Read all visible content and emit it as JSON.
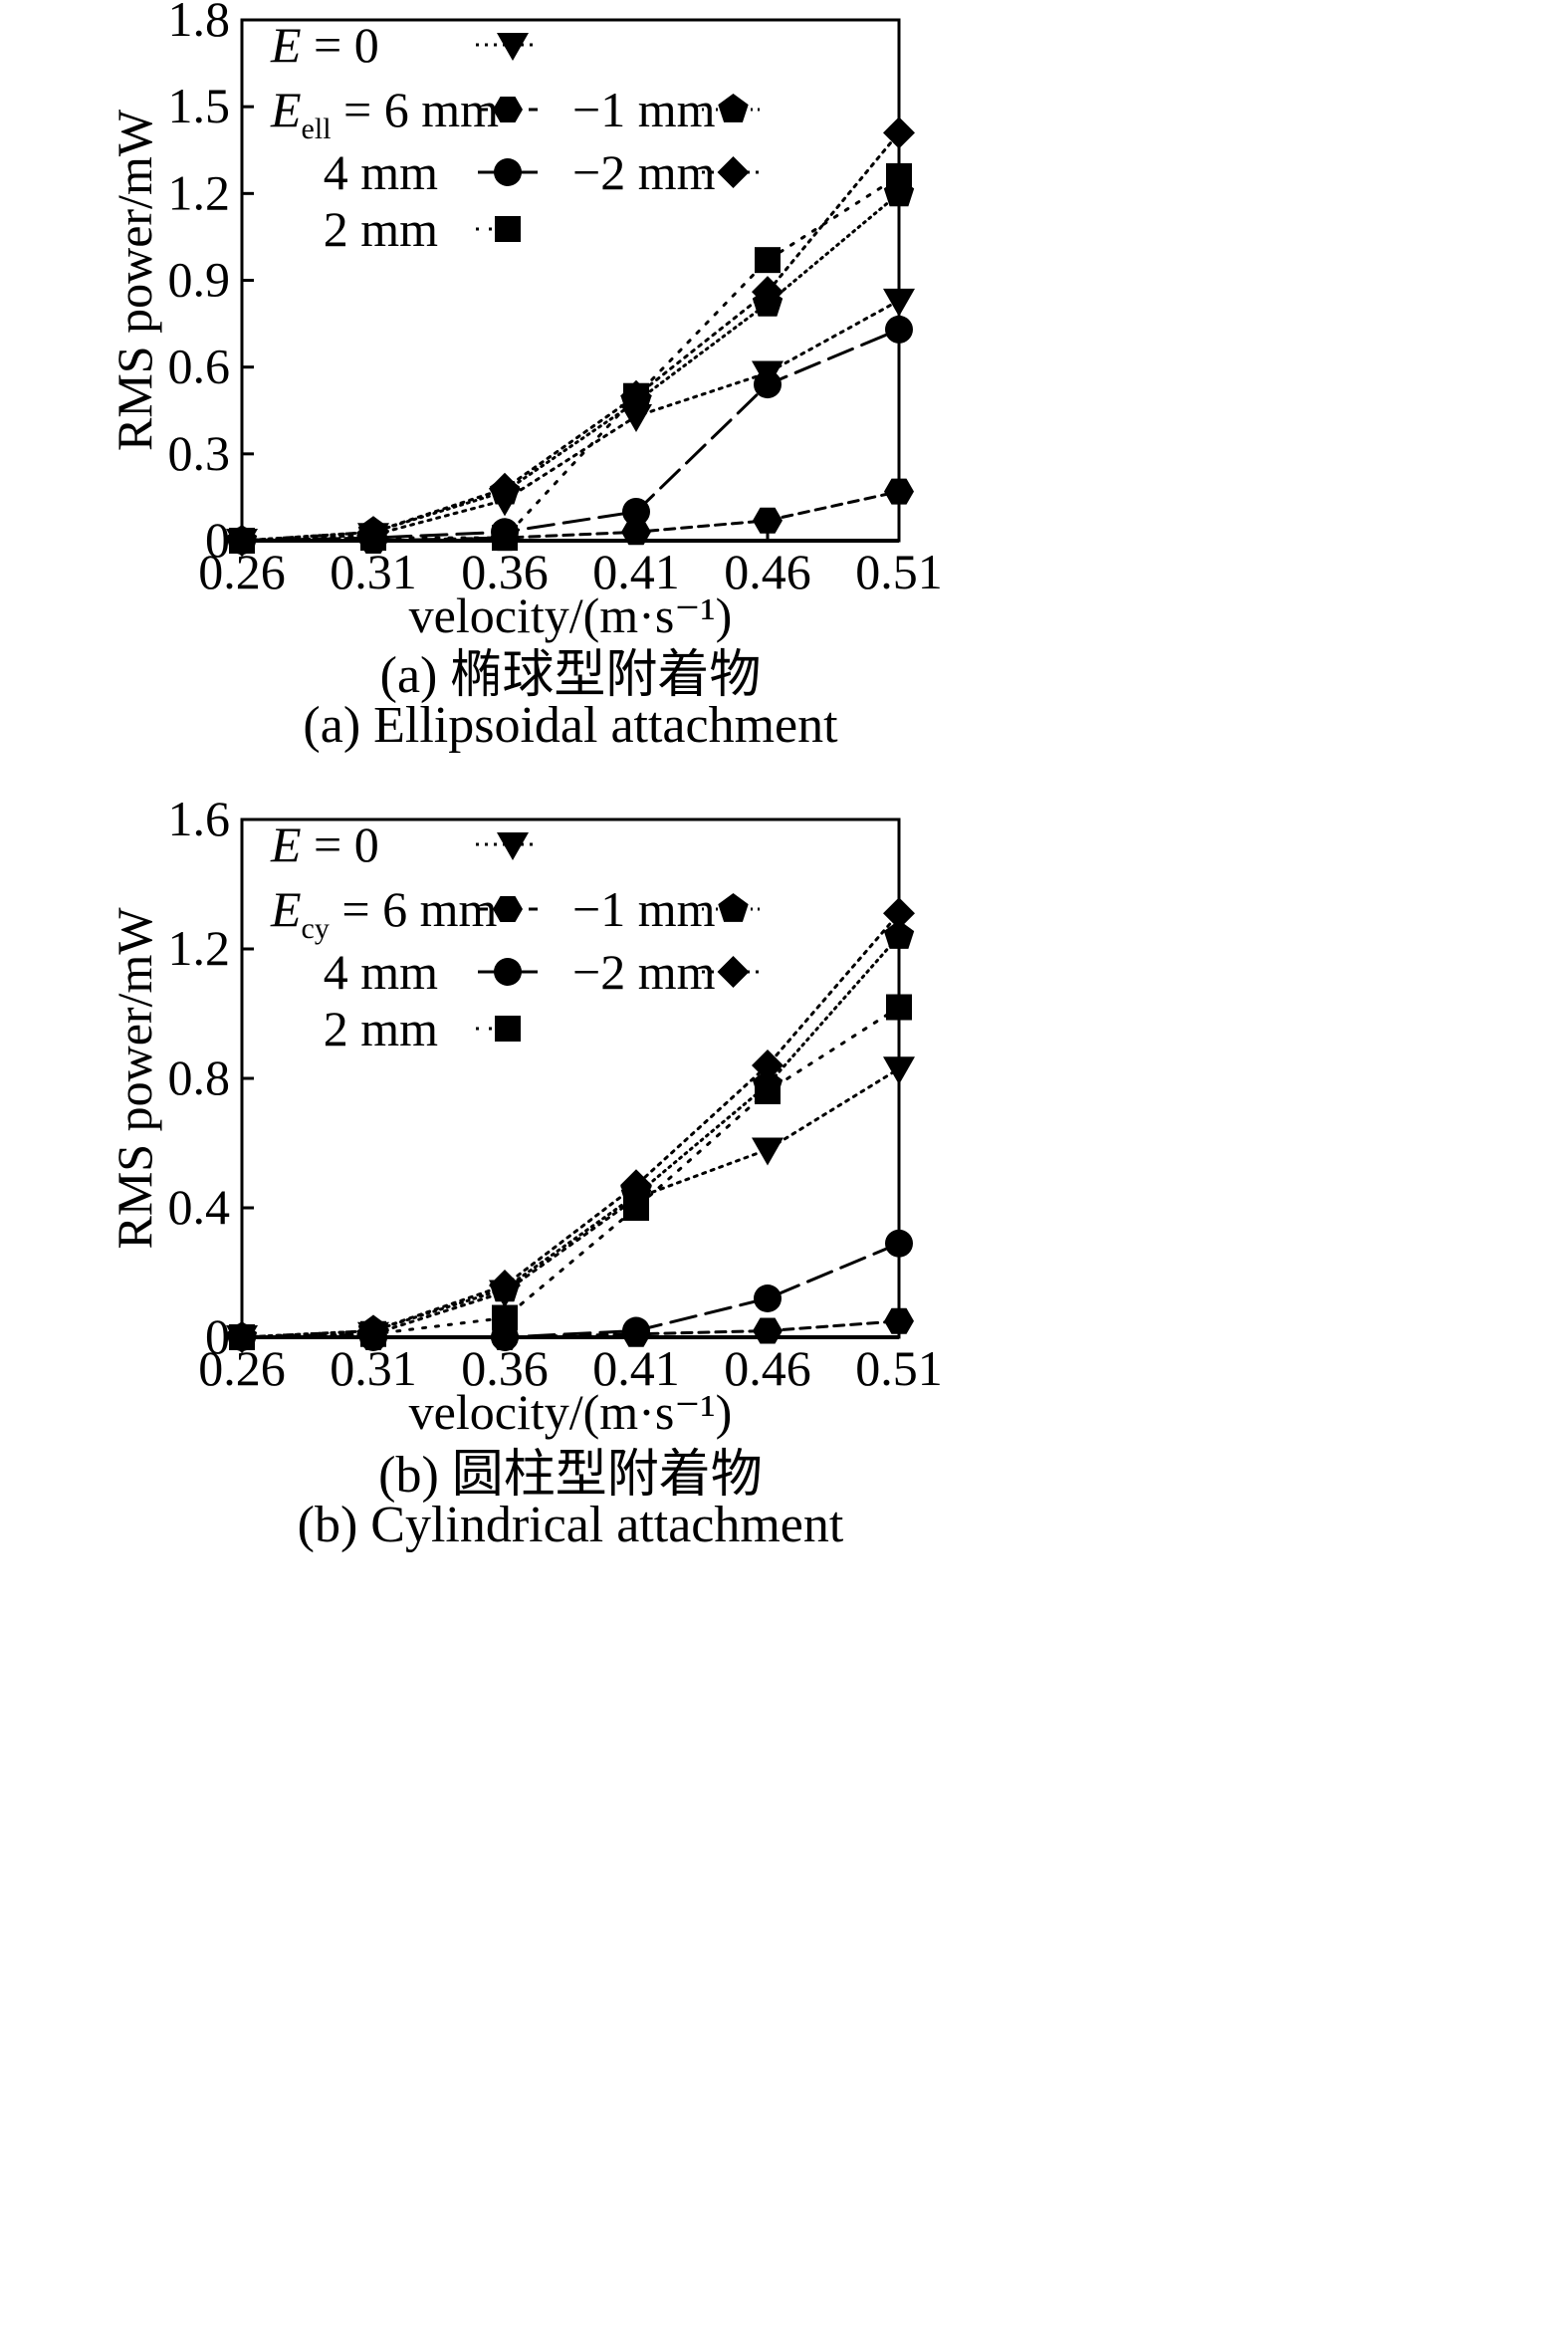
{
  "chart_data": [
    {
      "type": "line",
      "caption_zh": "(a) 椭球型附着物",
      "caption_en": "(a) Ellipsoidal attachment",
      "xlabel": "velocity/(m·s⁻¹)",
      "ylabel": "RMS power/mW",
      "x": [
        0.26,
        0.31,
        0.36,
        0.41,
        0.46,
        0.51
      ],
      "x_ticks": [
        "0.26",
        "0.31",
        "0.36",
        "0.41",
        "0.46",
        "0.51"
      ],
      "ylim": [
        0,
        1.8
      ],
      "y_ticks": [
        0,
        0.3,
        0.6,
        0.9,
        1.2,
        1.5,
        1.8
      ],
      "y_tick_labels": [
        "0",
        "0.3",
        "0.6",
        "0.9",
        "1.2",
        "1.5",
        "1.8"
      ],
      "legend_header_symbol": "E",
      "legend_header_sub": "ell",
      "series": [
        {
          "name": "E = 0",
          "marker": "triangle-down",
          "dash": "dotted",
          "values": [
            0,
            0.02,
            0.14,
            0.43,
            0.58,
            0.83
          ]
        },
        {
          "name": "6 mm",
          "marker": "hexagon",
          "dash": "dashed-short",
          "values": [
            0,
            0.0,
            0.01,
            0.03,
            0.07,
            0.17
          ]
        },
        {
          "name": "4 mm",
          "marker": "circle",
          "dash": "dashed-long",
          "values": [
            0,
            0.01,
            0.03,
            0.1,
            0.54,
            0.73
          ]
        },
        {
          "name": "2 mm",
          "marker": "square",
          "dash": "dash-dot",
          "values": [
            0,
            0.01,
            0.01,
            0.5,
            0.97,
            1.26
          ]
        },
        {
          "name": "−1 mm",
          "marker": "pentagon",
          "dash": "dotted-fine",
          "values": [
            0,
            0.03,
            0.17,
            0.48,
            0.82,
            1.2
          ]
        },
        {
          "name": "−2 mm",
          "marker": "diamond",
          "dash": "dotted",
          "values": [
            0,
            0.03,
            0.18,
            0.5,
            0.86,
            1.41
          ]
        }
      ]
    },
    {
      "type": "line",
      "caption_zh": "(b) 圆柱型附着物",
      "caption_en": "(b) Cylindrical attachment",
      "xlabel": "velocity/(m·s⁻¹)",
      "ylabel": "RMS power/mW",
      "x": [
        0.26,
        0.31,
        0.36,
        0.41,
        0.46,
        0.51
      ],
      "x_ticks": [
        "0.26",
        "0.31",
        "0.36",
        "0.41",
        "0.46",
        "0.51"
      ],
      "ylim": [
        0,
        1.6
      ],
      "y_ticks": [
        0,
        0.4,
        0.8,
        1.2,
        1.6
      ],
      "y_tick_labels": [
        "0",
        "0.4",
        "0.8",
        "1.2",
        "1.6"
      ],
      "legend_header_symbol": "E",
      "legend_header_sub": "cy",
      "series": [
        {
          "name": "E = 0",
          "marker": "triangle-down",
          "dash": "dotted",
          "values": [
            0,
            0.01,
            0.14,
            0.43,
            0.58,
            0.83
          ]
        },
        {
          "name": "6 mm",
          "marker": "hexagon",
          "dash": "dashed-short",
          "values": [
            0,
            0.0,
            0.0,
            0.01,
            0.02,
            0.05
          ]
        },
        {
          "name": "4 mm",
          "marker": "circle",
          "dash": "dashed-long",
          "values": [
            0,
            0.0,
            0.0,
            0.02,
            0.12,
            0.29
          ]
        },
        {
          "name": "2 mm",
          "marker": "square",
          "dash": "dash-dot",
          "values": [
            0,
            0.01,
            0.06,
            0.4,
            0.76,
            1.02
          ]
        },
        {
          "name": "−1 mm",
          "marker": "pentagon",
          "dash": "dotted-fine",
          "values": [
            0,
            0.02,
            0.15,
            0.44,
            0.78,
            1.24
          ]
        },
        {
          "name": "−2 mm",
          "marker": "diamond",
          "dash": "dotted",
          "values": [
            0,
            0.02,
            0.16,
            0.47,
            0.84,
            1.31
          ]
        }
      ]
    }
  ]
}
